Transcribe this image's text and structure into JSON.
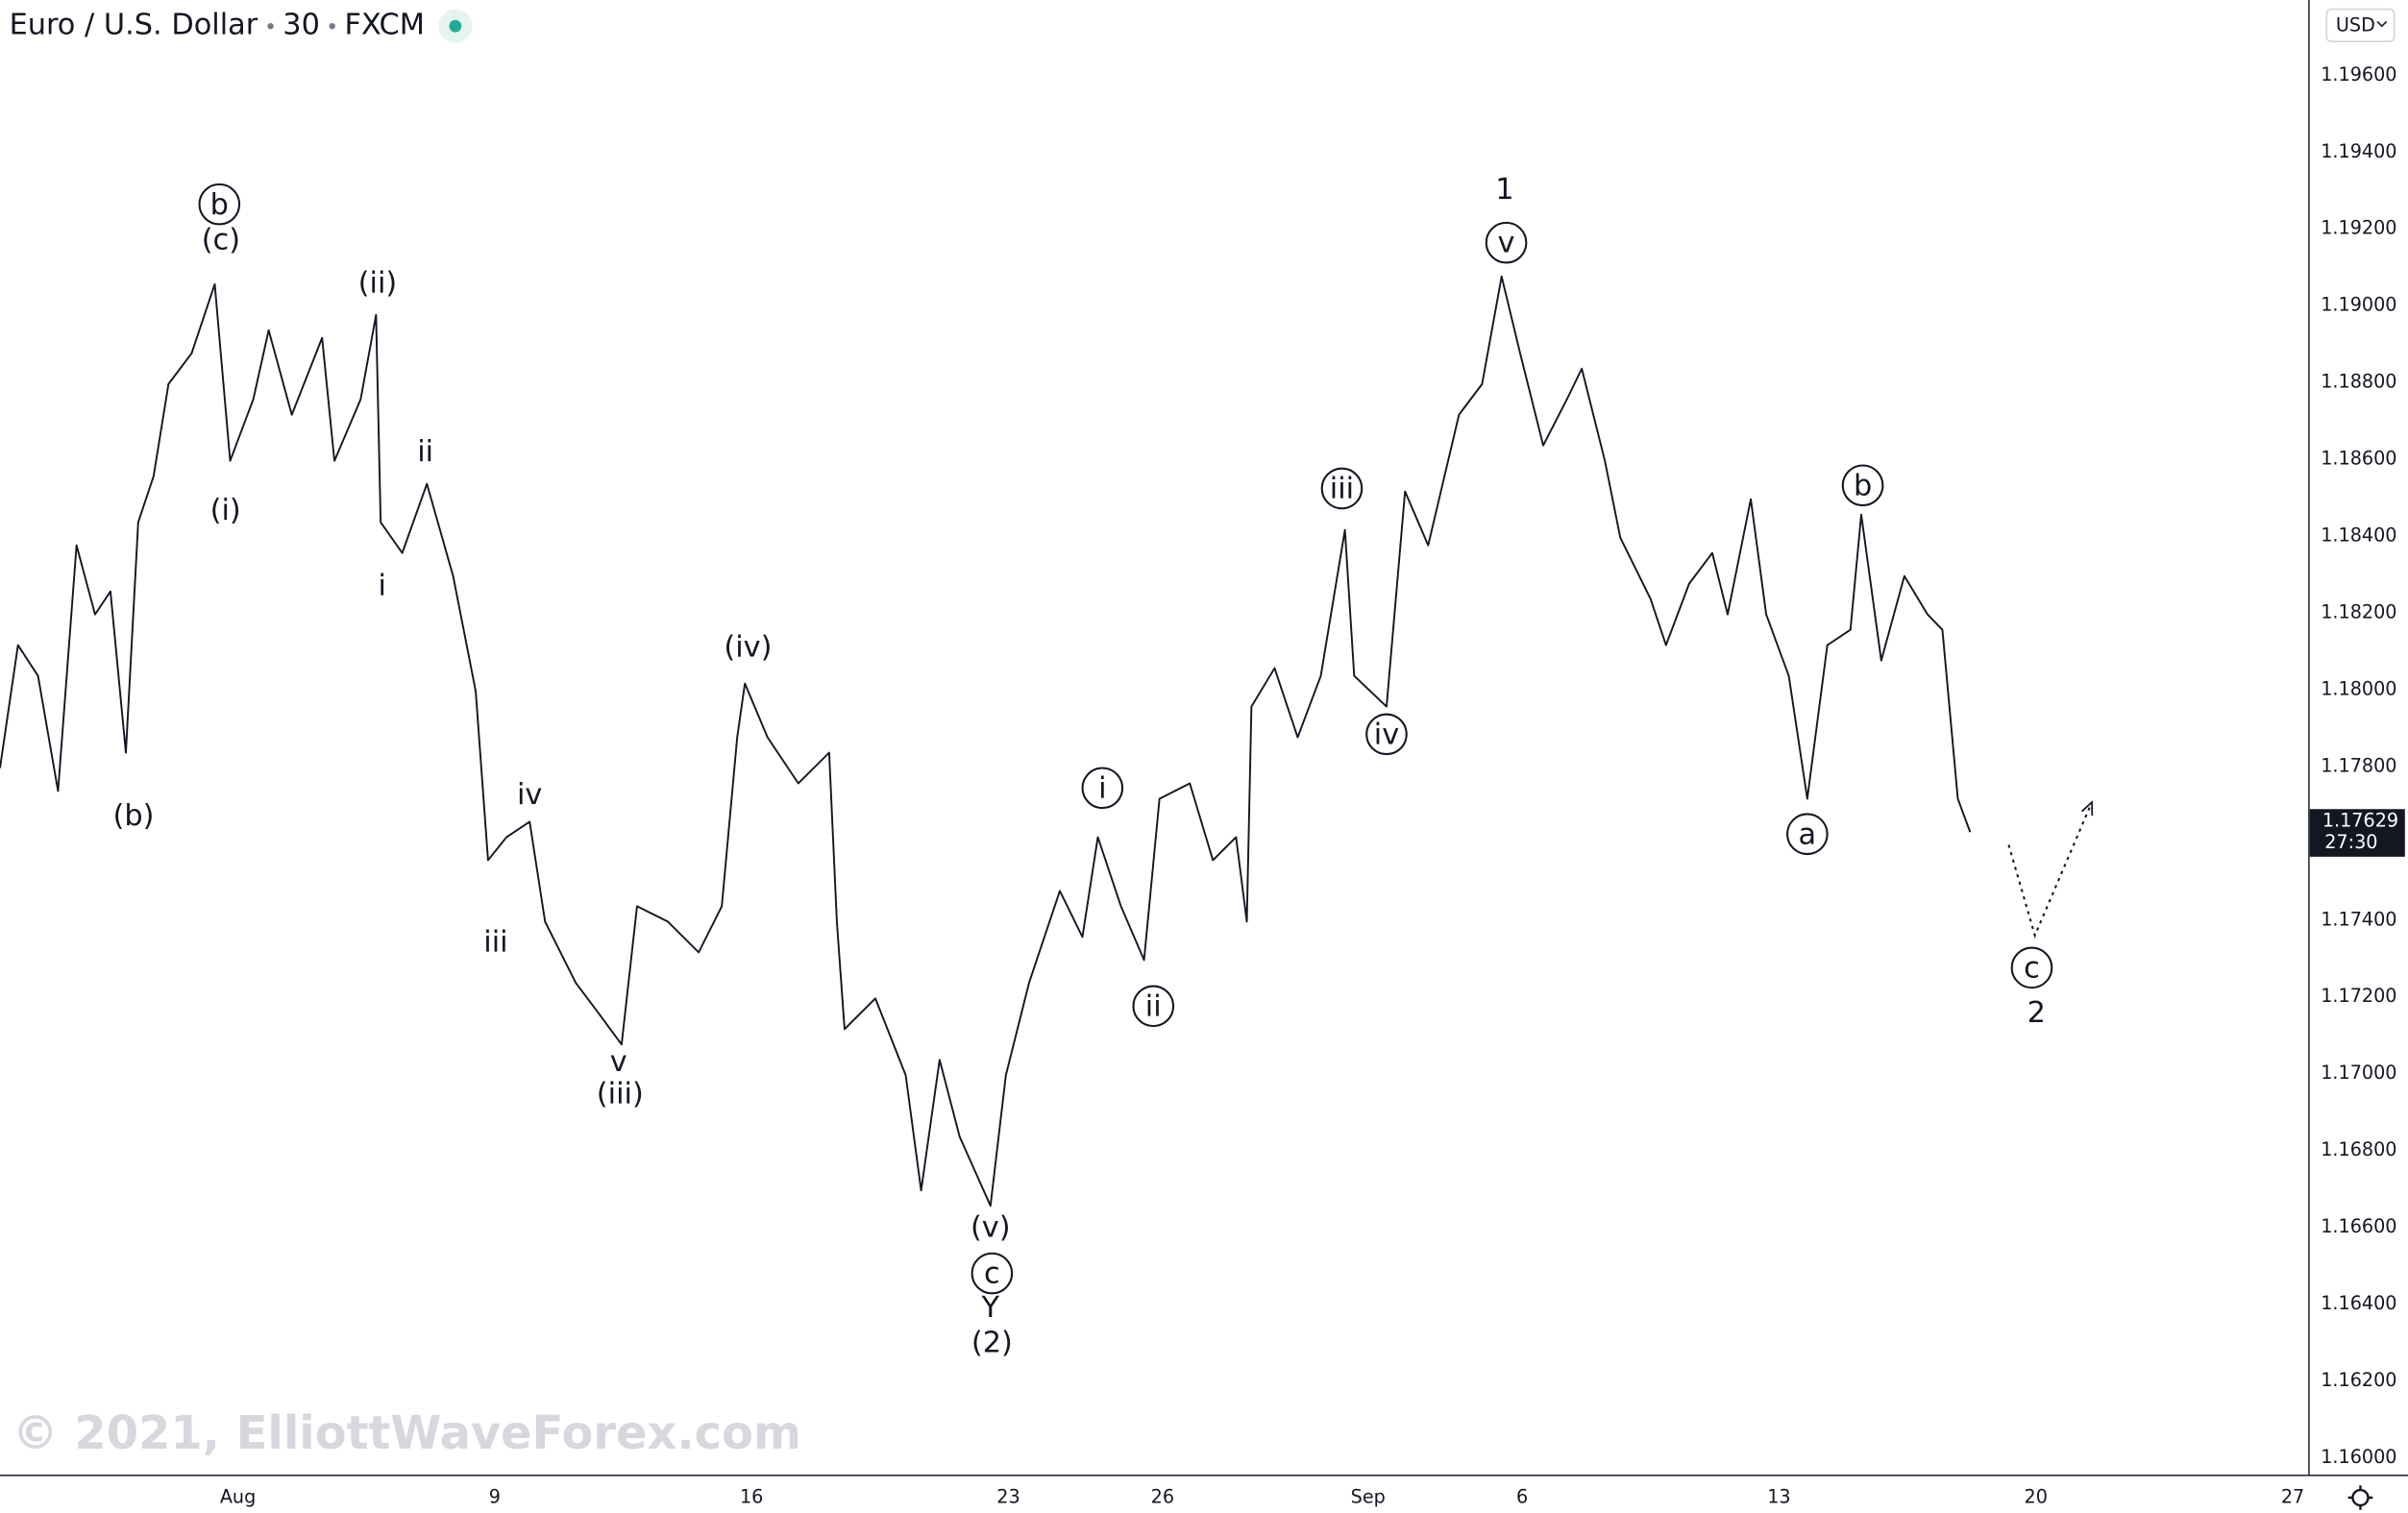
{
  "chart_data": {
    "type": "line",
    "title": "Euro / U.S. Dollar",
    "interval": "30",
    "source": "FXCM",
    "watermark": "© 2021, ElliottWaveForex.com",
    "currency": "USD",
    "last_price": 1.17629,
    "countdown": "27:30",
    "color": "#131722",
    "grid": false,
    "x": [
      -4.63,
      -4.28,
      -3.89,
      -3.5,
      -3.14,
      -2.78,
      -2.48,
      -2.18,
      -1.94,
      -1.64,
      -1.35,
      -0.9,
      -0.45,
      -0.15,
      0.3,
      0.6,
      1.05,
      1.64,
      1.88,
      2.39,
      2.69,
      2.78,
      3.2,
      3.68,
      4.19,
      4.63,
      4.87,
      5.23,
      5.68,
      5.98,
      6.58,
      7.03,
      7.47,
      7.77,
      8.37,
      8.97,
      9.42,
      9.72,
      9.87,
      10.31,
      10.91,
      11.51,
      11.66,
      11.81,
      12.41,
      13.0,
      13.3,
      13.66,
      14.05,
      14.65,
      14.95,
      15.4,
      16.0,
      16.44,
      16.74,
      17.19,
      17.64,
      17.94,
      18.53,
      18.98,
      19.43,
      19.64,
      19.73,
      20.18,
      20.63,
      21.08,
      21.55,
      21.73,
      22.36,
      22.72,
      23.17,
      23.77,
      24.22,
      24.6,
      24.96,
      25.41,
      25.87,
      26.16,
      26.61,
      26.91,
      27.5,
      27.8,
      28.25,
      28.7,
      29.0,
      29.45,
      29.75,
      30.19,
      30.55,
      30.94,
      31.39,
      31.6,
      31.99,
      32.44,
      32.89,
      33.18,
      33.48,
      33.72
    ],
    "values": [
      1.17796,
      1.18116,
      1.18036,
      1.17736,
      1.18376,
      1.18196,
      1.18256,
      1.17836,
      1.18436,
      1.18556,
      1.18796,
      1.18876,
      1.19056,
      1.18596,
      1.18756,
      1.18936,
      1.18716,
      1.18916,
      1.18596,
      1.18756,
      1.18976,
      1.18436,
      1.18356,
      1.18536,
      1.18296,
      1.17996,
      1.17556,
      1.17616,
      1.17656,
      1.17396,
      1.17236,
      1.17156,
      1.17076,
      1.17436,
      1.17396,
      1.17316,
      1.17436,
      1.17876,
      1.18016,
      1.17876,
      1.17756,
      1.17836,
      1.17396,
      1.17116,
      1.17196,
      1.16996,
      1.16696,
      1.17036,
      1.16836,
      1.16656,
      1.16996,
      1.17236,
      1.17476,
      1.17356,
      1.17616,
      1.17436,
      1.17296,
      1.17716,
      1.17756,
      1.17556,
      1.17616,
      1.17396,
      1.17956,
      1.18056,
      1.17876,
      1.18036,
      1.18416,
      1.18036,
      1.17956,
      1.18516,
      1.18376,
      1.18716,
      1.18796,
      1.19076,
      1.18876,
      1.18636,
      1.18756,
      1.18836,
      1.18596,
      1.18396,
      1.18236,
      1.18116,
      1.18276,
      1.18356,
      1.18196,
      1.18496,
      1.18196,
      1.18036,
      1.17716,
      1.18116,
      1.18156,
      1.18456,
      1.18076,
      1.18296,
      1.18196,
      1.18156,
      1.17716,
      1.17629
    ],
    "projection_x": [
      34.47,
      34.98,
      36.08
    ],
    "projection_values": [
      1.17596,
      1.1736,
      1.17704
    ],
    "xlim": [
      -4.63,
      40.3
    ],
    "ylim": [
      1.15956,
      1.19796
    ],
    "xticks": [
      {
        "value": 0,
        "label": "Aug"
      },
      {
        "value": 5,
        "label": "9"
      },
      {
        "value": 10,
        "label": "16"
      },
      {
        "value": 15,
        "label": "23"
      },
      {
        "value": 18,
        "label": "26"
      },
      {
        "value": 22,
        "label": "Sep"
      },
      {
        "value": 25,
        "label": "6"
      },
      {
        "value": 30,
        "label": "13"
      },
      {
        "value": 35,
        "label": "20"
      },
      {
        "value": 40,
        "label": "27"
      }
    ],
    "yticks": [
      {
        "value": 1.16,
        "label": "1.16000"
      },
      {
        "value": 1.162,
        "label": "1.16200"
      },
      {
        "value": 1.164,
        "label": "1.16400"
      },
      {
        "value": 1.166,
        "label": "1.16600"
      },
      {
        "value": 1.168,
        "label": "1.16800"
      },
      {
        "value": 1.17,
        "label": "1.17000"
      },
      {
        "value": 1.172,
        "label": "1.17200"
      },
      {
        "value": 1.174,
        "label": "1.17400"
      },
      {
        "value": 1.176,
        "label": "1.17600"
      },
      {
        "value": 1.178,
        "label": "1.17800"
      },
      {
        "value": 1.18,
        "label": "1.18000"
      },
      {
        "value": 1.182,
        "label": "1.18200"
      },
      {
        "value": 1.184,
        "label": "1.18400"
      },
      {
        "value": 1.186,
        "label": "1.18600"
      },
      {
        "value": 1.188,
        "label": "1.18800"
      },
      {
        "value": 1.19,
        "label": "1.19000"
      },
      {
        "value": 1.192,
        "label": "1.19200"
      },
      {
        "value": 1.194,
        "label": "1.19400"
      },
      {
        "value": 1.196,
        "label": "1.19600"
      }
    ],
    "annotations": [
      {
        "text": "b",
        "x": -0.36,
        "y": 1.19264,
        "circled": true
      },
      {
        "text": "(c)",
        "x": -0.33,
        "y": 1.19168,
        "circled": false
      },
      {
        "text": "(ii)",
        "x": 2.72,
        "y": 1.19056,
        "circled": false
      },
      {
        "text": "ii",
        "x": 3.65,
        "y": 1.18616,
        "circled": false
      },
      {
        "text": "(i)",
        "x": -0.24,
        "y": 1.18464,
        "circled": false
      },
      {
        "text": "i",
        "x": 2.81,
        "y": 1.18268,
        "circled": false
      },
      {
        "text": "(b)",
        "x": -2.03,
        "y": 1.17668,
        "circled": false
      },
      {
        "text": "iv",
        "x": 5.68,
        "y": 1.17724,
        "circled": false
      },
      {
        "text": "iii",
        "x": 5.02,
        "y": 1.1734,
        "circled": false
      },
      {
        "text": "v",
        "x": 7.41,
        "y": 1.17028,
        "circled": false
      },
      {
        "text": "(iii)",
        "x": 7.44,
        "y": 1.16944,
        "circled": false
      },
      {
        "text": "(iv)",
        "x": 9.93,
        "y": 1.18108,
        "circled": false
      },
      {
        "text": "i",
        "x": 16.83,
        "y": 1.17744,
        "circled": true
      },
      {
        "text": "ii",
        "x": 17.82,
        "y": 1.17176,
        "circled": true
      },
      {
        "text": "(v)",
        "x": 14.65,
        "y": 1.16596,
        "circled": false
      },
      {
        "text": "c",
        "x": 14.68,
        "y": 1.1648,
        "circled": true
      },
      {
        "text": "Y",
        "x": 14.65,
        "y": 1.16388,
        "circled": false
      },
      {
        "text": "(2)",
        "x": 14.68,
        "y": 1.16296,
        "circled": false
      },
      {
        "text": "iii",
        "x": 21.49,
        "y": 1.18524,
        "circled": true
      },
      {
        "text": "iv",
        "x": 22.36,
        "y": 1.17884,
        "circled": true
      },
      {
        "text": "1",
        "x": 24.66,
        "y": 1.193,
        "circled": false
      },
      {
        "text": "v",
        "x": 24.69,
        "y": 1.19164,
        "circled": true
      },
      {
        "text": "b",
        "x": 31.63,
        "y": 1.18532,
        "circled": true
      },
      {
        "text": "a",
        "x": 30.55,
        "y": 1.17624,
        "circled": true
      },
      {
        "text": "c",
        "x": 34.92,
        "y": 1.17276,
        "circled": true
      },
      {
        "text": "2",
        "x": 35.01,
        "y": 1.17156,
        "circled": false
      }
    ]
  }
}
